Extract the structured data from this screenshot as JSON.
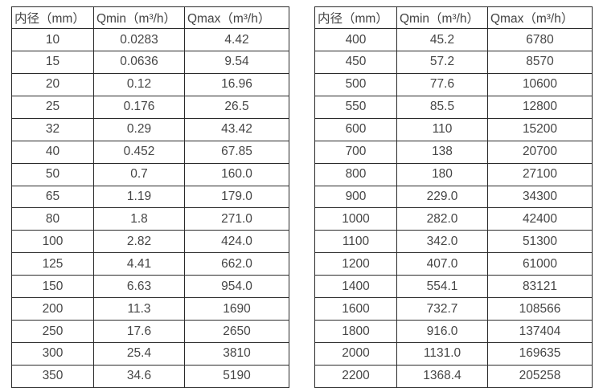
{
  "colors": {
    "border": "#2b2b2b",
    "text": "#454545",
    "background": "#ffffff"
  },
  "column_keys": [
    "diameter",
    "qmin",
    "qmax"
  ],
  "tables": [
    {
      "name": "flow-spec-table-small-diameters",
      "headers": [
        "内径（mm）",
        "Qmin（m³/h）",
        "Qmax（m³/h）"
      ],
      "rows": [
        [
          "10",
          "0.0283",
          "4.42"
        ],
        [
          "15",
          "0.0636",
          "9.54"
        ],
        [
          "20",
          "0.12",
          "16.96"
        ],
        [
          "25",
          "0.176",
          "26.5"
        ],
        [
          "32",
          "0.29",
          "43.42"
        ],
        [
          "40",
          "0.452",
          "67.85"
        ],
        [
          "50",
          "0.7",
          "160.0"
        ],
        [
          "65",
          "1.19",
          "179.0"
        ],
        [
          "80",
          "1.8",
          "271.0"
        ],
        [
          "100",
          "2.82",
          "424.0"
        ],
        [
          "125",
          "4.41",
          "662.0"
        ],
        [
          "150",
          "6.63",
          "954.0"
        ],
        [
          "200",
          "11.3",
          "1690"
        ],
        [
          "250",
          "17.6",
          "2650"
        ],
        [
          "300",
          "25.4",
          "3810"
        ],
        [
          "350",
          "34.6",
          "5190"
        ]
      ]
    },
    {
      "name": "flow-spec-table-large-diameters",
      "headers": [
        "内径（mm）",
        "Qmin（m³/h）",
        "Qmax（m³/h）"
      ],
      "rows": [
        [
          "400",
          "45.2",
          "6780"
        ],
        [
          "450",
          "57.2",
          "8570"
        ],
        [
          "500",
          "77.6",
          "10600"
        ],
        [
          "550",
          "85.5",
          "12800"
        ],
        [
          "600",
          "110",
          "15200"
        ],
        [
          "700",
          "138",
          "20700"
        ],
        [
          "800",
          "180",
          "27100"
        ],
        [
          "900",
          "229.0",
          "34300"
        ],
        [
          "1000",
          "282.0",
          "42400"
        ],
        [
          "1100",
          "342.0",
          "51300"
        ],
        [
          "1200",
          "407.0",
          "61000"
        ],
        [
          "1400",
          "554.1",
          "83121"
        ],
        [
          "1600",
          "732.7",
          "108566"
        ],
        [
          "1800",
          "916.0",
          "137404"
        ],
        [
          "2000",
          "1131.0",
          "169635"
        ],
        [
          "2200",
          "1368.4",
          "205258"
        ]
      ]
    }
  ]
}
